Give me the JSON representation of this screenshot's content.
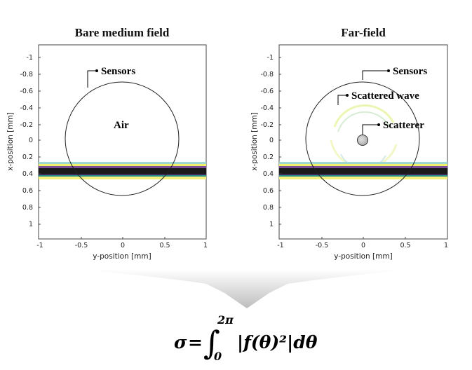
{
  "panels": [
    {
      "title": "Bare medium field",
      "xlabel": "y-position [mm]",
      "ylabel": "x-position [mm]",
      "x_ticks": [
        "-1",
        "-0.5",
        "0",
        "0.5",
        "1"
      ],
      "y_ticks": [
        "-1",
        "-0.8",
        "-0.6",
        "-0.4",
        "-0.2",
        "0",
        "0.2",
        "0.4",
        "0.6",
        "0.8",
        "1"
      ],
      "labels": {
        "sensors": "Sensors",
        "air": "Air"
      }
    },
    {
      "title": "Far-field",
      "xlabel": "y-position [mm]",
      "ylabel": "x-position [mm]",
      "x_ticks": [
        "-1",
        "-0.5",
        "0",
        "0.5",
        "1"
      ],
      "y_ticks": [
        "-1",
        "-0.8",
        "-0.6",
        "-0.4",
        "-0.2",
        "0",
        "0.2",
        "0.4",
        "0.6",
        "0.8",
        "1"
      ],
      "labels": {
        "sensors": "Sensors",
        "scattered_wave": "Scattered wave",
        "scatterer": "Scatterer"
      }
    }
  ],
  "equation": {
    "lhs": "σ",
    "equals": "=",
    "integral": "∫",
    "upper_limit": "2π",
    "lower_limit": "0",
    "integrand": "|f(θ)²|dθ"
  },
  "colors": {
    "band_dark": "#1a1a1a",
    "band_purple": "#6a3f8c",
    "band_yellow": "#f2ef6a",
    "band_teal": "#2f8f8a",
    "arrow_gray": "#d8d8d8",
    "scatterer_fill": "#c4c4c4"
  }
}
